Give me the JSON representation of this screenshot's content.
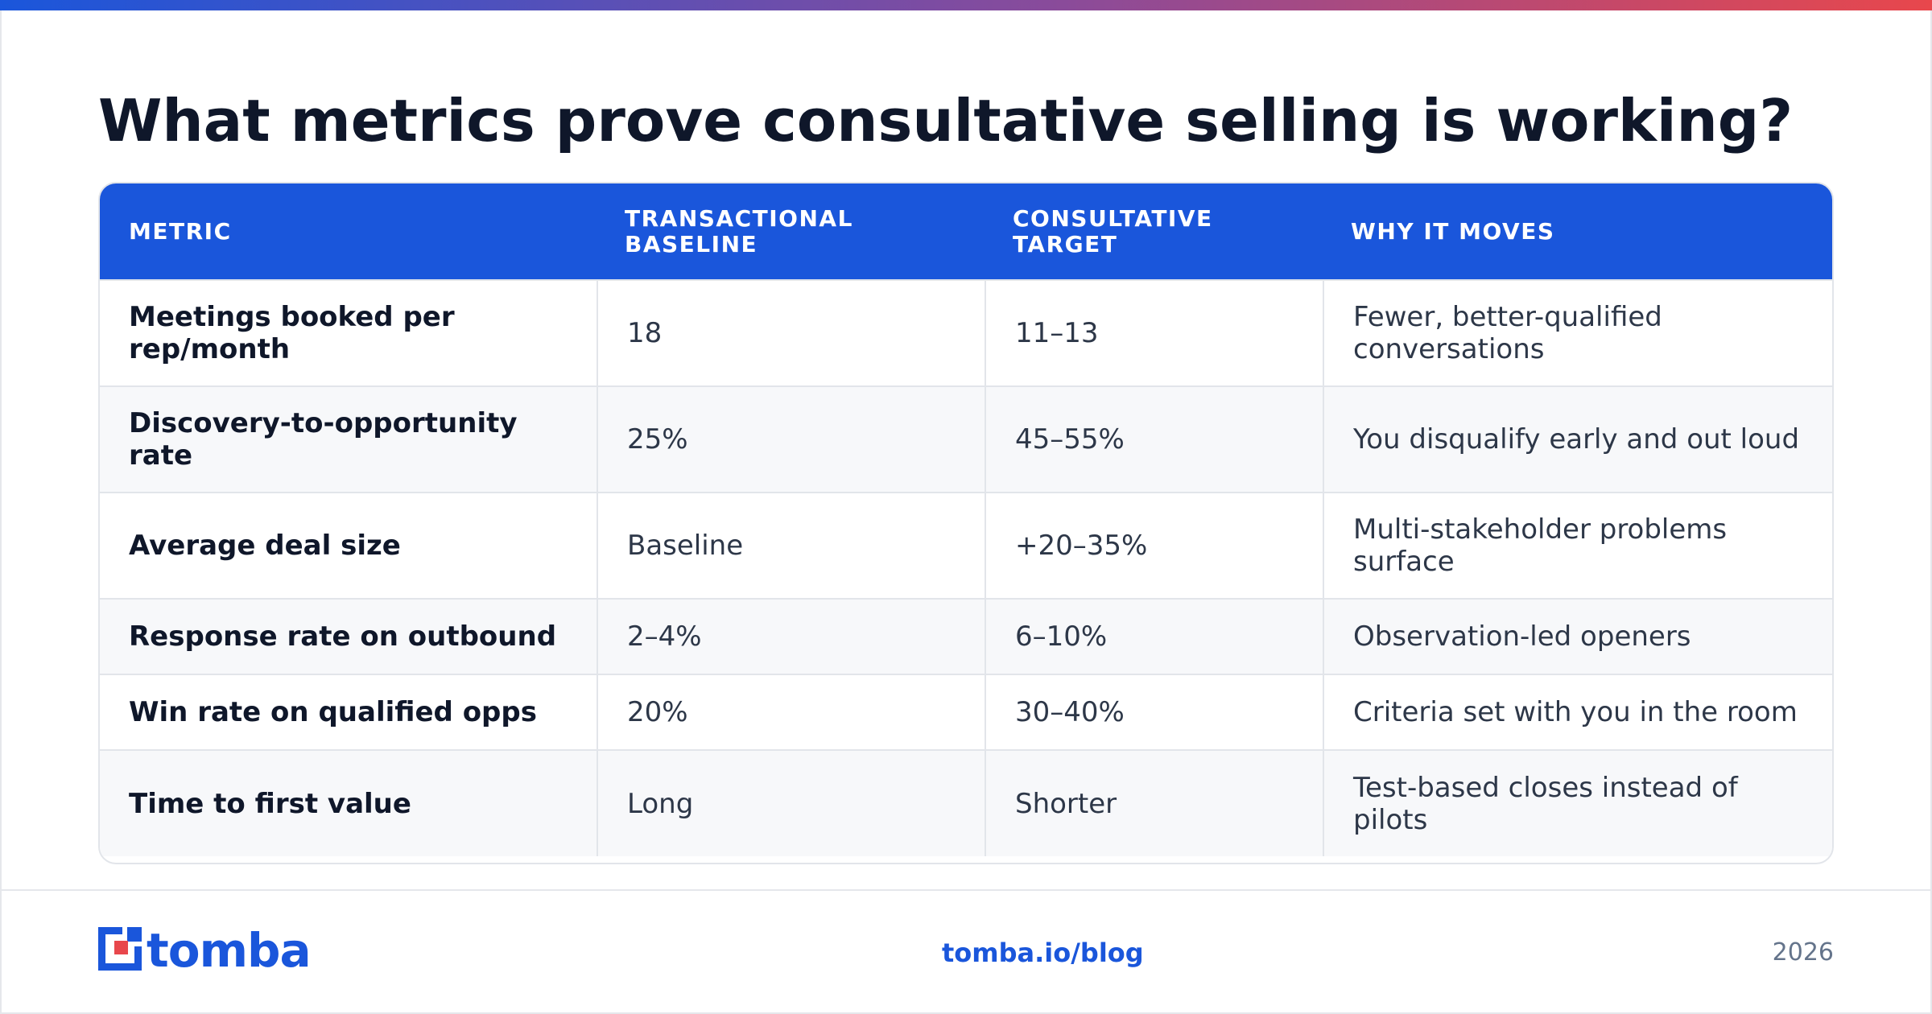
{
  "title": "What metrics prove consultative selling is working?",
  "table": {
    "headers": [
      "METRIC",
      "TRANSACTIONAL BASELINE",
      "CONSULTATIVE TARGET",
      "WHY IT MOVES"
    ],
    "rows": [
      [
        "Meetings booked per rep/month",
        "18",
        "11–13",
        "Fewer, better-qualified conversations"
      ],
      [
        "Discovery-to-opportunity rate",
        "25%",
        "45–55%",
        "You disqualify early and out loud"
      ],
      [
        "Average deal size",
        "Baseline",
        "+20–35%",
        "Multi-stakeholder problems surface"
      ],
      [
        "Response rate on outbound",
        "2–4%",
        "6–10%",
        "Observation-led openers"
      ],
      [
        "Win rate on qualified opps",
        "20%",
        "30–40%",
        "Criteria set with you in the room"
      ],
      [
        "Time to first value",
        "Long",
        "Shorter",
        "Test-based closes instead of pilots"
      ]
    ]
  },
  "footer": {
    "logo_text": "tomba",
    "link": "tomba.io/blog",
    "year": "2026"
  },
  "colors": {
    "accent": "#1a56db",
    "logo_red": "#e8474c",
    "title": "#0f172a",
    "body_text": "#2d3748",
    "alt_row": "#f7f8fa"
  },
  "icons": [
    "tomba-logo-icon"
  ]
}
